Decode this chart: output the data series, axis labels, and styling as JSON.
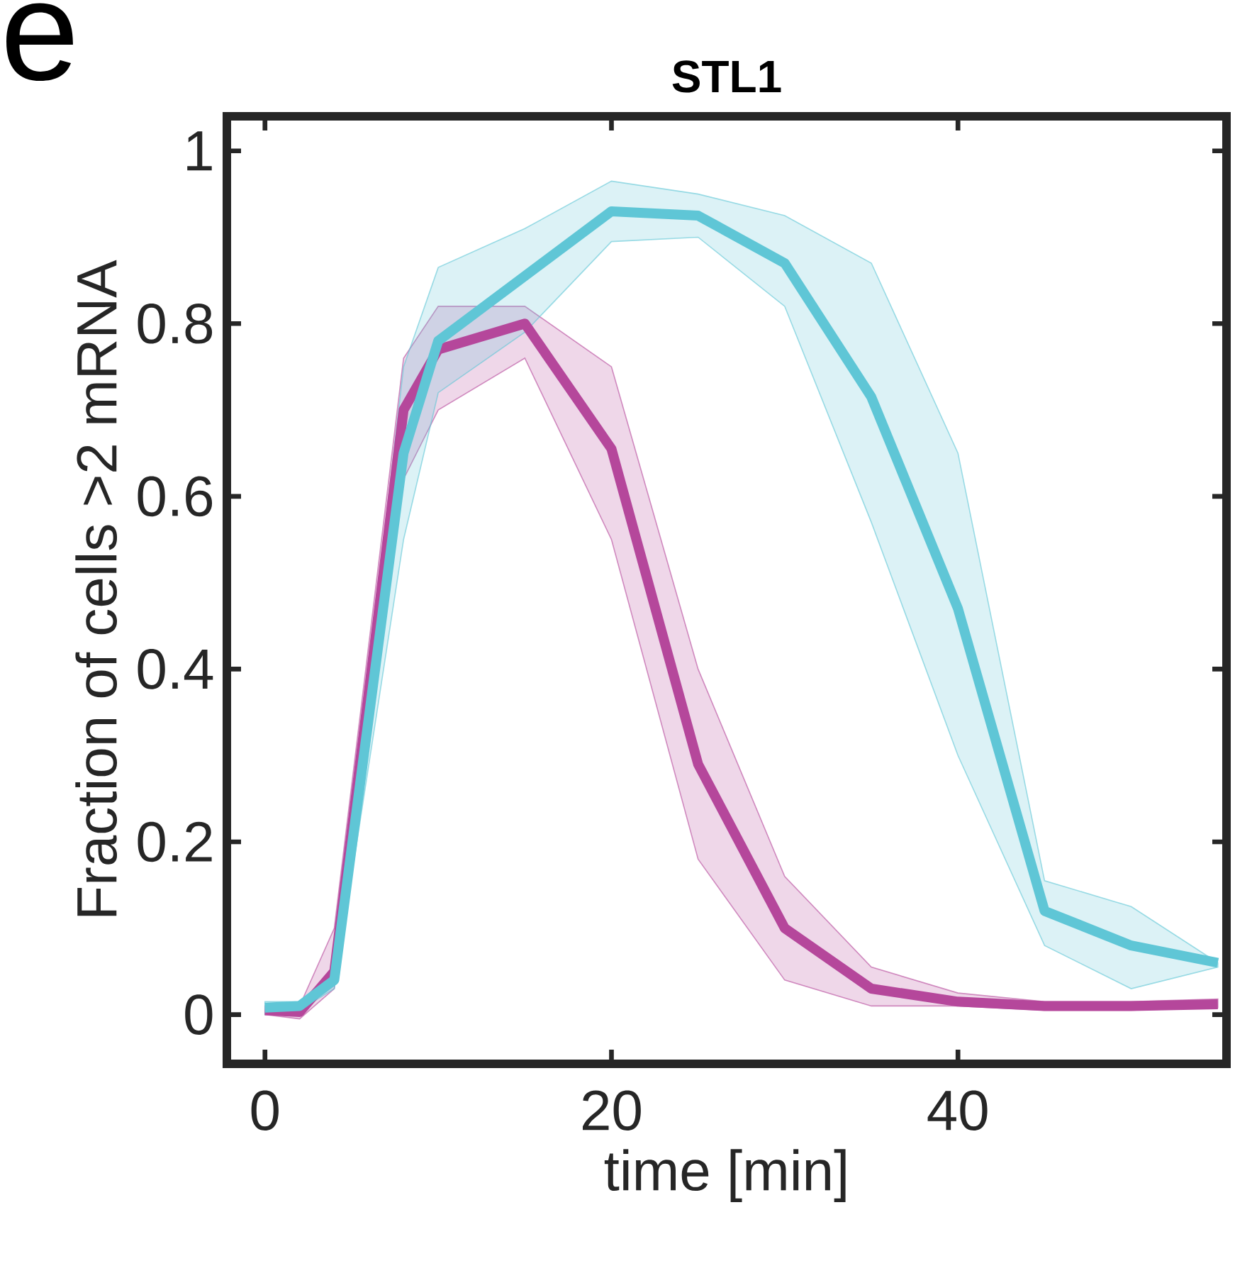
{
  "chart_data": {
    "type": "line",
    "title": "STL1",
    "xlabel": "time [min]",
    "ylabel": "Fraction of cells >2 mRNA",
    "annotations": [
      "e"
    ],
    "x": [
      0,
      2,
      4,
      8,
      10,
      15,
      20,
      25,
      30,
      35,
      40,
      45,
      50,
      55
    ],
    "series": [
      {
        "color": "#b5479b",
        "values": [
          0.005,
          0.003,
          0.05,
          0.7,
          0.77,
          0.8,
          0.655,
          0.29,
          0.1,
          0.03,
          0.015,
          0.01,
          0.01,
          0.012
        ],
        "lower": [
          0.0,
          -0.005,
          0.03,
          0.62,
          0.7,
          0.76,
          0.55,
          0.18,
          0.04,
          0.01,
          0.01,
          0.005,
          0.005,
          0.008
        ],
        "upper": [
          0.01,
          0.01,
          0.1,
          0.76,
          0.82,
          0.82,
          0.75,
          0.4,
          0.16,
          0.055,
          0.025,
          0.015,
          0.015,
          0.018
        ]
      },
      {
        "color": "#5fc6d6",
        "values": [
          0.008,
          0.01,
          0.04,
          0.65,
          0.78,
          0.855,
          0.93,
          0.925,
          0.87,
          0.715,
          0.47,
          0.12,
          0.08,
          0.06
        ],
        "lower": [
          0.0,
          0.005,
          0.03,
          0.55,
          0.72,
          0.79,
          0.895,
          0.9,
          0.82,
          0.57,
          0.3,
          0.08,
          0.03,
          0.055
        ],
        "upper": [
          0.015,
          0.015,
          0.05,
          0.75,
          0.865,
          0.91,
          0.965,
          0.95,
          0.925,
          0.87,
          0.65,
          0.155,
          0.125,
          0.06
        ]
      }
    ],
    "xlim": [
      -2.2,
      55.5
    ],
    "ylim": [
      -0.057,
      1.04
    ],
    "xticks": [
      0,
      20,
      40
    ],
    "yticks": [
      0,
      0.2,
      0.4,
      0.6,
      0.8,
      1
    ],
    "grid": false,
    "legend": false,
    "line_style": "solid"
  }
}
